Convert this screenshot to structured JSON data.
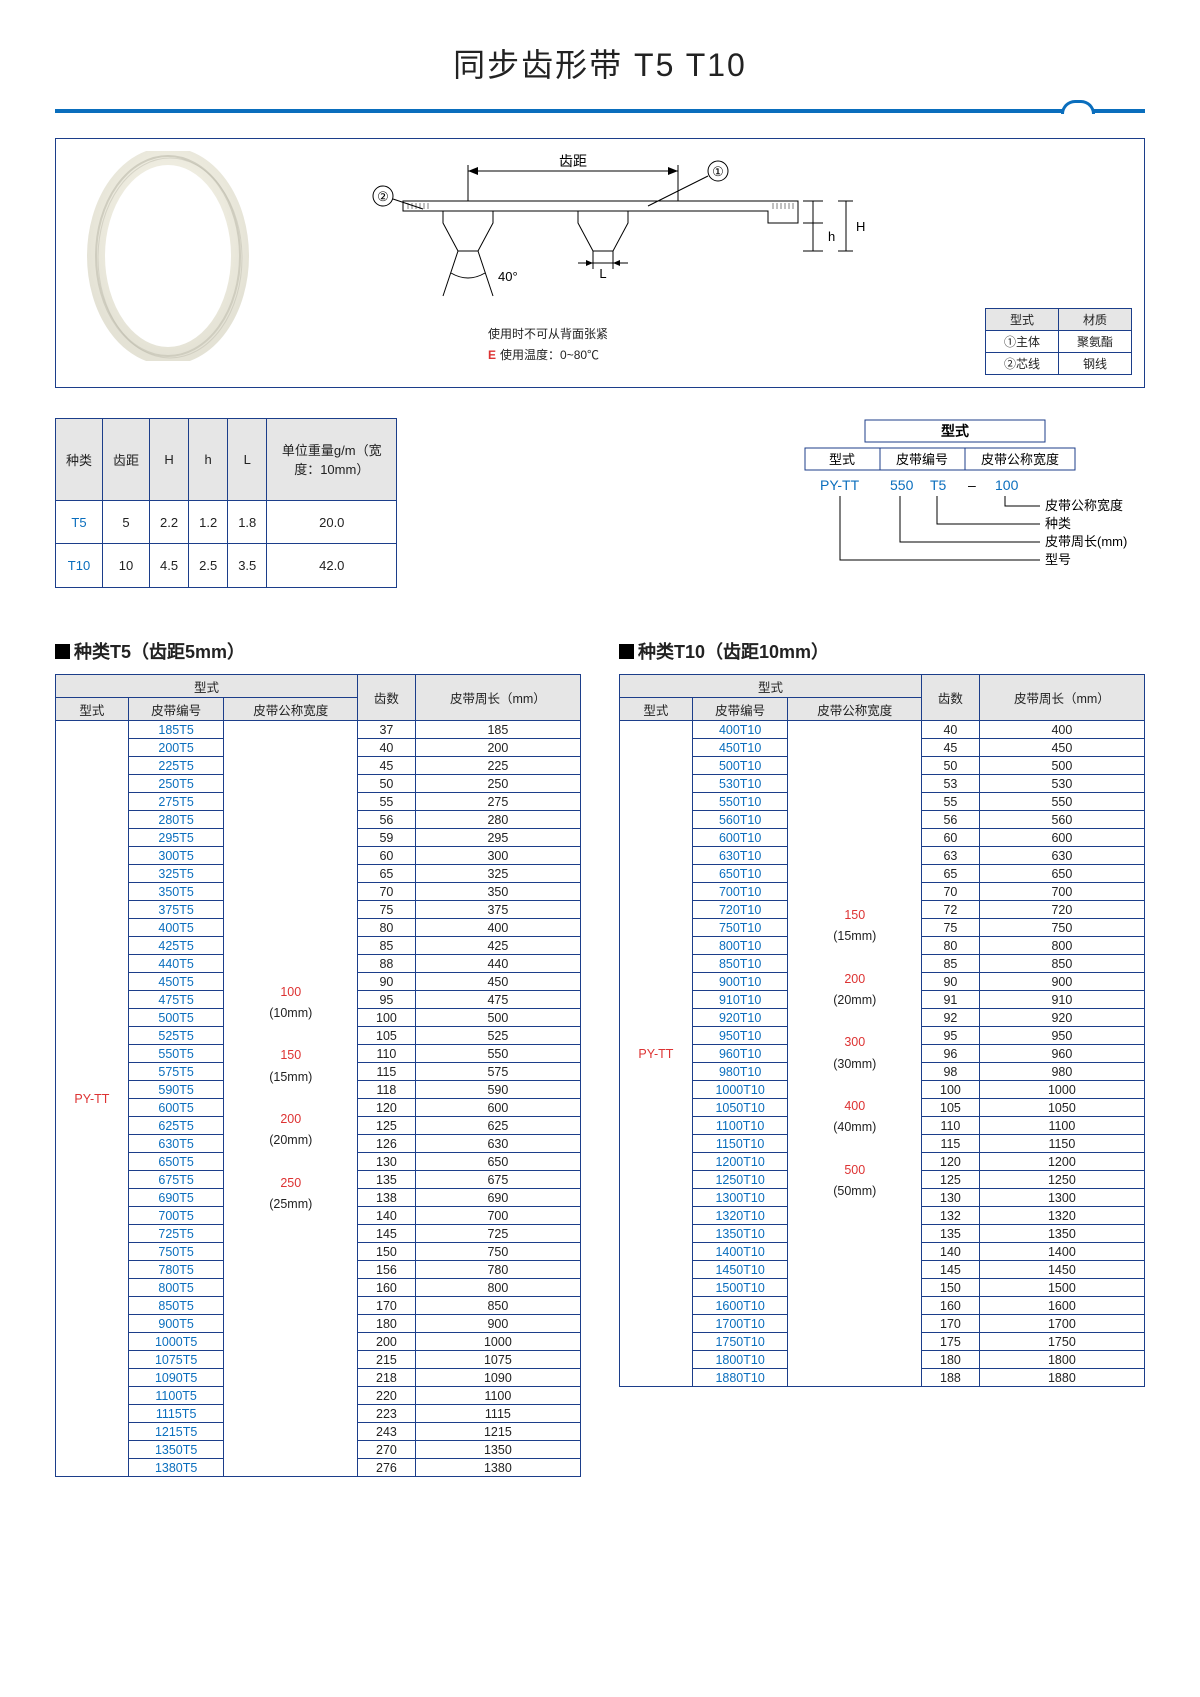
{
  "title": "同步齿形带 T5 T10",
  "diagram": {
    "label_pitch": "齿距",
    "marker1": "①",
    "marker2": "②",
    "angle": "40°",
    "dim_L": "L",
    "dim_H": "H",
    "dim_h": "h"
  },
  "notes": {
    "line1": "使用时不可从背面张紧",
    "line2_prefix": "E",
    "line2": "使用温度：0~80℃"
  },
  "material_table": {
    "h1": "型式",
    "h2": "材质",
    "r1c1": "①主体",
    "r1c2": "聚氨酯",
    "r2c1": "②芯线",
    "r2c2": "钢线"
  },
  "spec_table": {
    "headers": [
      "种类",
      "齿距",
      "H",
      "h",
      "L",
      "单位重量g/m（宽度：10mm）"
    ],
    "rows": [
      [
        "T5",
        "5",
        "2.2",
        "1.2",
        "1.8",
        "20.0"
      ],
      [
        "T10",
        "10",
        "4.5",
        "2.5",
        "3.5",
        "42.0"
      ]
    ]
  },
  "format": {
    "title": "型式",
    "h1": "型式",
    "h2": "皮带编号",
    "h3": "皮带公称宽度",
    "ex1": "PY-TT",
    "ex2": "550",
    "ex3": "T5",
    "dash": "–",
    "ex4": "100",
    "lbl1": "皮带公称宽度",
    "lbl2": "种类",
    "lbl3": "皮带周长(mm)",
    "lbl4": "型号"
  },
  "t5": {
    "heading": "种类T5（齿距5mm）",
    "group_h": "型式",
    "headers": [
      "型式",
      "皮带编号",
      "皮带公称宽度",
      "齿数",
      "皮带周长（mm）"
    ],
    "model": "PY-TT",
    "widths": [
      "100",
      "(10mm)",
      "",
      "150",
      "(15mm)",
      "",
      "200",
      "(20mm)",
      "",
      "250",
      "(25mm)"
    ],
    "rows": [
      [
        "185T5",
        "37",
        "185"
      ],
      [
        "200T5",
        "40",
        "200"
      ],
      [
        "225T5",
        "45",
        "225"
      ],
      [
        "250T5",
        "50",
        "250"
      ],
      [
        "275T5",
        "55",
        "275"
      ],
      [
        "280T5",
        "56",
        "280"
      ],
      [
        "295T5",
        "59",
        "295"
      ],
      [
        "300T5",
        "60",
        "300"
      ],
      [
        "325T5",
        "65",
        "325"
      ],
      [
        "350T5",
        "70",
        "350"
      ],
      [
        "375T5",
        "75",
        "375"
      ],
      [
        "400T5",
        "80",
        "400"
      ],
      [
        "425T5",
        "85",
        "425"
      ],
      [
        "440T5",
        "88",
        "440"
      ],
      [
        "450T5",
        "90",
        "450"
      ],
      [
        "475T5",
        "95",
        "475"
      ],
      [
        "500T5",
        "100",
        "500"
      ],
      [
        "525T5",
        "105",
        "525"
      ],
      [
        "550T5",
        "110",
        "550"
      ],
      [
        "575T5",
        "115",
        "575"
      ],
      [
        "590T5",
        "118",
        "590"
      ],
      [
        "600T5",
        "120",
        "600"
      ],
      [
        "625T5",
        "125",
        "625"
      ],
      [
        "630T5",
        "126",
        "630"
      ],
      [
        "650T5",
        "130",
        "650"
      ],
      [
        "675T5",
        "135",
        "675"
      ],
      [
        "690T5",
        "138",
        "690"
      ],
      [
        "700T5",
        "140",
        "700"
      ],
      [
        "725T5",
        "145",
        "725"
      ],
      [
        "750T5",
        "150",
        "750"
      ],
      [
        "780T5",
        "156",
        "780"
      ],
      [
        "800T5",
        "160",
        "800"
      ],
      [
        "850T5",
        "170",
        "850"
      ],
      [
        "900T5",
        "180",
        "900"
      ],
      [
        "1000T5",
        "200",
        "1000"
      ],
      [
        "1075T5",
        "215",
        "1075"
      ],
      [
        "1090T5",
        "218",
        "1090"
      ],
      [
        "1100T5",
        "220",
        "1100"
      ],
      [
        "1115T5",
        "223",
        "1115"
      ],
      [
        "1215T5",
        "243",
        "1215"
      ],
      [
        "1350T5",
        "270",
        "1350"
      ],
      [
        "1380T5",
        "276",
        "1380"
      ]
    ]
  },
  "t10": {
    "heading": "种类T10（齿距10mm）",
    "group_h": "型式",
    "headers": [
      "型式",
      "皮带编号",
      "皮带公称宽度",
      "齿数",
      "皮带周长（mm）"
    ],
    "model": "PY-TT",
    "widths": [
      "150",
      "(15mm)",
      "",
      "200",
      "(20mm)",
      "",
      "300",
      "(30mm)",
      "",
      "400",
      "(40mm)",
      "",
      "500",
      "(50mm)"
    ],
    "rows": [
      [
        "400T10",
        "40",
        "400"
      ],
      [
        "450T10",
        "45",
        "450"
      ],
      [
        "500T10",
        "50",
        "500"
      ],
      [
        "530T10",
        "53",
        "530"
      ],
      [
        "550T10",
        "55",
        "550"
      ],
      [
        "560T10",
        "56",
        "560"
      ],
      [
        "600T10",
        "60",
        "600"
      ],
      [
        "630T10",
        "63",
        "630"
      ],
      [
        "650T10",
        "65",
        "650"
      ],
      [
        "700T10",
        "70",
        "700"
      ],
      [
        "720T10",
        "72",
        "720"
      ],
      [
        "750T10",
        "75",
        "750"
      ],
      [
        "800T10",
        "80",
        "800"
      ],
      [
        "850T10",
        "85",
        "850"
      ],
      [
        "900T10",
        "90",
        "900"
      ],
      [
        "910T10",
        "91",
        "910"
      ],
      [
        "920T10",
        "92",
        "920"
      ],
      [
        "950T10",
        "95",
        "950"
      ],
      [
        "960T10",
        "96",
        "960"
      ],
      [
        "980T10",
        "98",
        "980"
      ],
      [
        "1000T10",
        "100",
        "1000"
      ],
      [
        "1050T10",
        "105",
        "1050"
      ],
      [
        "1100T10",
        "110",
        "1100"
      ],
      [
        "1150T10",
        "115",
        "1150"
      ],
      [
        "1200T10",
        "120",
        "1200"
      ],
      [
        "1250T10",
        "125",
        "1250"
      ],
      [
        "1300T10",
        "130",
        "1300"
      ],
      [
        "1320T10",
        "132",
        "1320"
      ],
      [
        "1350T10",
        "135",
        "1350"
      ],
      [
        "1400T10",
        "140",
        "1400"
      ],
      [
        "1450T10",
        "145",
        "1450"
      ],
      [
        "1500T10",
        "150",
        "1500"
      ],
      [
        "1600T10",
        "160",
        "1600"
      ],
      [
        "1700T10",
        "170",
        "1700"
      ],
      [
        "1750T10",
        "175",
        "1750"
      ],
      [
        "1800T10",
        "180",
        "1800"
      ],
      [
        "1880T10",
        "188",
        "1880"
      ]
    ]
  }
}
